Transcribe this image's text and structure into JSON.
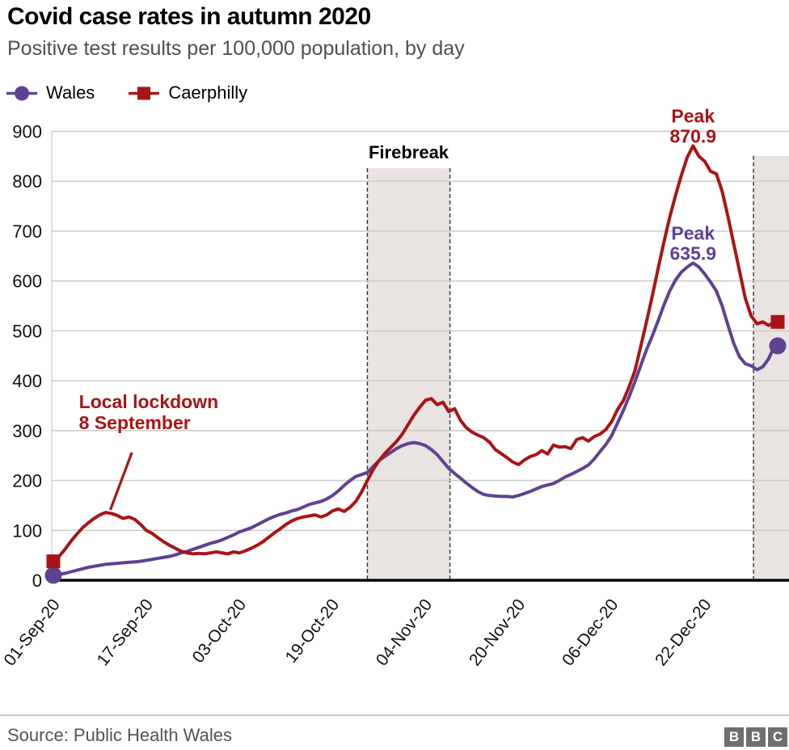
{
  "header": {
    "title": "Covid case rates in autumn 2020",
    "subtitle": "Positive test results per 100,000 population, by day"
  },
  "legend": [
    {
      "label": "Wales",
      "color": "#5e4291",
      "marker": "circle"
    },
    {
      "label": "Caerphilly",
      "color": "#a91414",
      "marker": "square"
    }
  ],
  "footer": {
    "source": "Source: Public Health Wales",
    "logo_letters": [
      "B",
      "B",
      "C"
    ]
  },
  "style": {
    "grid_color": "#cccccc",
    "axis_color": "#000000",
    "band_color": "#e9e3e2",
    "dash_color": "#2e2e2e",
    "tick_label_color": "#111111"
  },
  "chart_data": {
    "type": "line",
    "title": "Covid case rates in autumn 2020",
    "xlabel": "",
    "ylabel": "Positive test results per 100,000 population",
    "x_unit": "days since 01-Sep-20, daily points ending 03-Jan-21",
    "ylim": [
      0,
      900
    ],
    "y_ticks": [
      0,
      100,
      200,
      300,
      400,
      500,
      600,
      700,
      800,
      900
    ],
    "x_tick_days": [
      0,
      16,
      32,
      48,
      64,
      80,
      96,
      112
    ],
    "x_tick_labels": [
      "01-Sep-20",
      "17-Sep-20",
      "03-Oct-20",
      "19-Oct-20",
      "04-Nov-20",
      "20-Nov-20",
      "06-Dec-20",
      "22-Dec-20"
    ],
    "legend_position": "top-left",
    "grid": "horizontal",
    "series": [
      {
        "name": "Wales",
        "color": "#5e4291",
        "marker": "circle",
        "values": [
          10,
          12,
          14,
          17,
          20,
          23,
          26,
          28,
          30,
          32,
          33,
          34,
          35,
          36,
          37,
          38,
          40,
          42,
          44,
          46,
          48,
          51,
          55,
          58,
          62,
          66,
          70,
          74,
          77,
          81,
          86,
          91,
          97,
          101,
          105,
          111,
          117,
          123,
          128,
          132,
          135,
          139,
          142,
          147,
          152,
          155,
          158,
          163,
          170,
          179,
          190,
          200,
          208,
          212,
          216,
          228,
          240,
          248,
          256,
          264,
          270,
          274,
          276,
          274,
          270,
          262,
          252,
          238,
          224,
          214,
          205,
          195,
          186,
          178,
          172,
          170,
          169,
          168,
          168,
          167,
          170,
          174,
          178,
          183,
          188,
          191,
          194,
          200,
          207,
          212,
          218,
          224,
          231,
          243,
          258,
          272,
          290,
          315,
          340,
          368,
          398,
          430,
          462,
          490,
          520,
          552,
          580,
          602,
          618,
          628,
          635.9,
          628,
          614,
          598,
          580,
          550,
          512,
          475,
          448,
          434,
          430,
          422,
          428,
          444,
          470
        ]
      },
      {
        "name": "Caerphilly",
        "color": "#a91414",
        "marker": "square",
        "values": [
          38,
          48,
          62,
          78,
          92,
          105,
          115,
          124,
          131,
          136,
          134,
          130,
          124,
          127,
          122,
          112,
          100,
          94,
          85,
          77,
          70,
          64,
          58,
          55,
          53,
          54,
          53,
          55,
          57,
          55,
          53,
          57,
          55,
          59,
          64,
          70,
          77,
          86,
          95,
          103,
          112,
          119,
          124,
          127,
          129,
          131,
          127,
          131,
          139,
          143,
          138,
          146,
          158,
          177,
          200,
          222,
          240,
          254,
          266,
          278,
          293,
          312,
          331,
          347,
          361,
          364,
          352,
          357,
          338,
          344,
          321,
          306,
          297,
          291,
          286,
          277,
          262,
          254,
          246,
          237,
          232,
          241,
          248,
          252,
          260,
          253,
          271,
          267,
          268,
          264,
          282,
          286,
          279,
          288,
          293,
          302,
          318,
          342,
          360,
          388,
          420,
          468,
          518,
          570,
          625,
          678,
          728,
          772,
          812,
          848,
          870.9,
          850,
          840,
          820,
          815,
          780,
          730,
          675,
          620,
          565,
          530,
          514,
          518,
          511,
          518
        ]
      }
    ],
    "bands": [
      {
        "name": "firebreak",
        "label": "Firebreak",
        "start_day": 54,
        "end_day": 68.2,
        "top_value": 826
      },
      {
        "name": "recent-days",
        "label": "",
        "start_day": 120.4,
        "end_day": 127,
        "top_value": 851
      }
    ],
    "annotations": {
      "local_lockdown": {
        "text_lines": [
          "Local lockdown",
          "8 September"
        ],
        "text_day": 4.4,
        "text_value": 345,
        "line_height": 26,
        "pointer": {
          "x1_day": 13.5,
          "y1_value": 256,
          "x2_day": 9.8,
          "y2_value": 141
        }
      },
      "peaks": [
        {
          "series": "Caerphilly",
          "lines": [
            "Peak",
            "870.9"
          ]
        },
        {
          "series": "Wales",
          "lines": [
            "Peak",
            "635.9"
          ]
        }
      ]
    }
  }
}
